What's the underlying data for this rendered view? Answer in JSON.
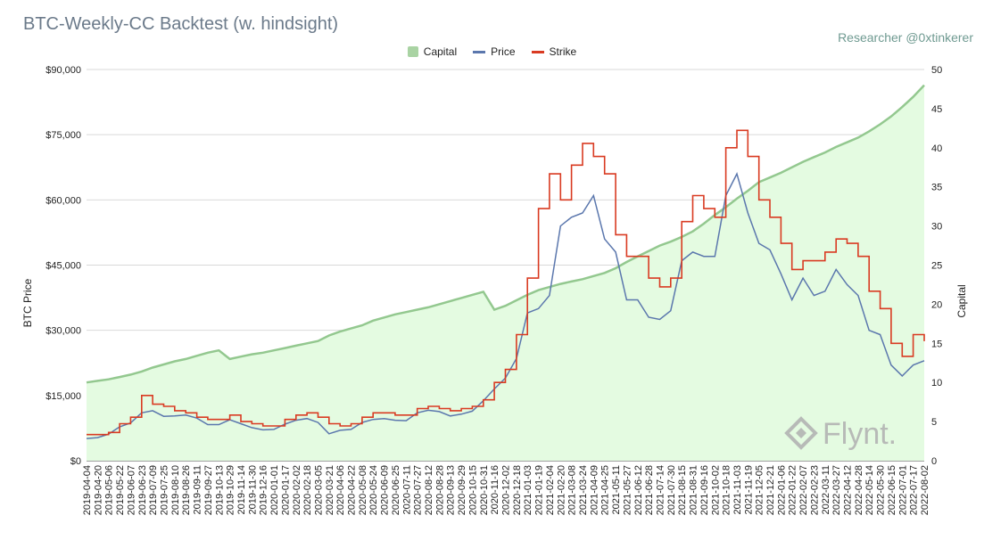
{
  "header": {
    "title": "BTC-Weekly-CC Backtest (w. hindsight)",
    "author": "Researcher @0xtinkerer"
  },
  "watermark": {
    "brand": "Flynt."
  },
  "chart_data": {
    "type": "line",
    "title": "BTC-Weekly-CC Backtest (w. hindsight)",
    "ylabel": "BTC Price",
    "y2label": "Capital",
    "ylim": [
      0,
      90000
    ],
    "y2lim": [
      0,
      50
    ],
    "y_ticks": [
      "$0",
      "$15,000",
      "$30,000",
      "$45,000",
      "$60,000",
      "$75,000",
      "$90,000"
    ],
    "y2_ticks": [
      "0",
      "5",
      "10",
      "15",
      "20",
      "25",
      "30",
      "35",
      "40",
      "45",
      "50"
    ],
    "legend": [
      "Capital",
      "Price",
      "Strike"
    ],
    "colors": {
      "capital": "#93c88f",
      "capital_fill": "#e4fbe1",
      "price": "#5b77ad",
      "strike": "#d93b22",
      "grid": "#d9d9d9"
    },
    "x": [
      "2019-04-04",
      "2019-04-20",
      "2019-05-06",
      "2019-05-22",
      "2019-06-07",
      "2019-06-23",
      "2019-07-09",
      "2019-07-25",
      "2019-08-10",
      "2019-08-26",
      "2019-09-11",
      "2019-09-27",
      "2019-10-13",
      "2019-10-29",
      "2019-11-14",
      "2019-11-30",
      "2019-12-16",
      "2020-01-01",
      "2020-01-17",
      "2020-02-02",
      "2020-02-18",
      "2020-03-05",
      "2020-03-21",
      "2020-04-06",
      "2020-04-22",
      "2020-05-08",
      "2020-05-24",
      "2020-06-09",
      "2020-06-25",
      "2020-07-11",
      "2020-07-27",
      "2020-08-12",
      "2020-08-28",
      "2020-09-13",
      "2020-09-29",
      "2020-10-15",
      "2020-10-31",
      "2020-11-16",
      "2020-12-02",
      "2020-12-18",
      "2021-01-03",
      "2021-01-19",
      "2021-02-04",
      "2021-02-20",
      "2021-03-08",
      "2021-03-24",
      "2021-04-09",
      "2021-04-25",
      "2021-05-11",
      "2021-05-27",
      "2021-06-12",
      "2021-06-28",
      "2021-07-14",
      "2021-07-30",
      "2021-08-15",
      "2021-08-31",
      "2021-09-16",
      "2021-10-02",
      "2021-10-18",
      "2021-11-03",
      "2021-11-19",
      "2021-12-05",
      "2021-12-21",
      "2022-01-06",
      "2022-01-22",
      "2022-02-07",
      "2022-02-23",
      "2022-03-11",
      "2022-03-27",
      "2022-04-12",
      "2022-04-28",
      "2022-05-14",
      "2022-05-30",
      "2022-06-15",
      "2022-07-01",
      "2022-07-17",
      "2022-08-02"
    ],
    "series": [
      {
        "name": "Capital",
        "axis": "right",
        "values": [
          10.0,
          10.2,
          10.4,
          10.7,
          11.0,
          11.4,
          11.9,
          12.3,
          12.7,
          13.0,
          13.4,
          13.8,
          14.1,
          13.0,
          13.3,
          13.6,
          13.8,
          14.1,
          14.4,
          14.7,
          15.0,
          15.3,
          16.0,
          16.5,
          16.9,
          17.3,
          17.9,
          18.3,
          18.7,
          19.0,
          19.3,
          19.6,
          20.0,
          20.4,
          20.8,
          21.2,
          21.6,
          19.3,
          19.8,
          20.5,
          21.2,
          21.8,
          22.2,
          22.6,
          22.9,
          23.2,
          23.6,
          24.0,
          24.6,
          25.4,
          26.1,
          26.8,
          27.5,
          28.0,
          28.6,
          29.3,
          30.3,
          31.4,
          32.4,
          33.5,
          34.5,
          35.6,
          36.2,
          36.8,
          37.5,
          38.2,
          38.8,
          39.4,
          40.1,
          40.7,
          41.3,
          42.1,
          43.0,
          44.0,
          45.2,
          46.5,
          48.0
        ]
      },
      {
        "name": "Price",
        "axis": "left",
        "values": [
          5100,
          5300,
          6100,
          7800,
          8700,
          11000,
          11500,
          10200,
          10300,
          10500,
          9800,
          8300,
          8300,
          9400,
          8500,
          7600,
          7100,
          7200,
          8400,
          9300,
          9700,
          8800,
          6200,
          7000,
          7200,
          8800,
          9500,
          9700,
          9300,
          9200,
          11000,
          11600,
          11300,
          10300,
          10700,
          11400,
          13800,
          16500,
          19000,
          23500,
          34000,
          35000,
          38000,
          54000,
          56000,
          57000,
          61000,
          51000,
          48000,
          37000,
          37000,
          33000,
          32500,
          34500,
          46000,
          48000,
          47000,
          47000,
          61000,
          66000,
          57000,
          50000,
          48500,
          43000,
          37000,
          42000,
          38000,
          39000,
          44000,
          40500,
          38000,
          30000,
          29000,
          22000,
          19500,
          22000,
          23000
        ]
      },
      {
        "name": "Strike",
        "axis": "left",
        "values": [
          6000,
          6000,
          6500,
          8500,
          10000,
          15000,
          13000,
          12500,
          11500,
          11000,
          10000,
          9500,
          9500,
          10500,
          9000,
          8500,
          8000,
          8000,
          9500,
          10500,
          11000,
          10000,
          8500,
          8000,
          8500,
          10000,
          11000,
          11000,
          10500,
          10500,
          12000,
          12500,
          12000,
          11500,
          12000,
          12500,
          14000,
          18000,
          21000,
          29000,
          42000,
          58000,
          66000,
          60000,
          68000,
          73000,
          70000,
          66000,
          52000,
          47000,
          47000,
          42000,
          40000,
          42000,
          55000,
          61000,
          58000,
          56000,
          72000,
          76000,
          70000,
          60000,
          56000,
          50000,
          44000,
          46000,
          46000,
          48000,
          51000,
          50000,
          47000,
          39000,
          35000,
          27000,
          24000,
          29000,
          27500
        ]
      }
    ]
  }
}
